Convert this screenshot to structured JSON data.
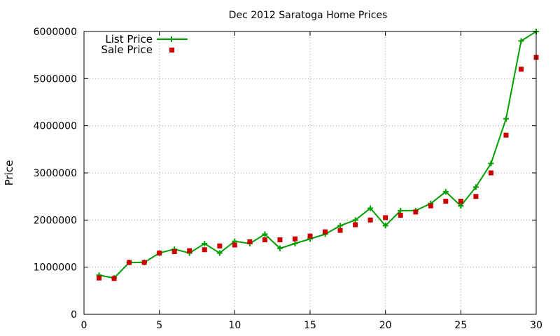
{
  "chart_data": {
    "type": "line",
    "title": "Dec 2012 Saratoga Home Prices",
    "xlabel": "",
    "ylabel": "Price",
    "xlim": [
      0,
      30
    ],
    "ylim": [
      0,
      6000000
    ],
    "x_ticks": [
      0,
      5,
      10,
      15,
      20,
      25,
      30
    ],
    "y_ticks": [
      0,
      1000000,
      2000000,
      3000000,
      4000000,
      5000000,
      6000000
    ],
    "grid": true,
    "legend_position": "top-left",
    "x": [
      1,
      2,
      3,
      4,
      5,
      6,
      7,
      8,
      9,
      10,
      11,
      12,
      13,
      14,
      15,
      16,
      17,
      18,
      19,
      20,
      21,
      22,
      23,
      24,
      25,
      26,
      27,
      28,
      29,
      30
    ],
    "series": [
      {
        "name": "List Price",
        "style": "linespoints",
        "marker": "plus",
        "color": "#00a000",
        "values": [
          830000,
          770000,
          1100000,
          1100000,
          1300000,
          1380000,
          1300000,
          1500000,
          1300000,
          1550000,
          1500000,
          1700000,
          1400000,
          1500000,
          1600000,
          1700000,
          1880000,
          2000000,
          2250000,
          1880000,
          2200000,
          2200000,
          2350000,
          2600000,
          2300000,
          2700000,
          3200000,
          4150000,
          5800000,
          6000000
        ]
      },
      {
        "name": "Sale Price",
        "style": "points",
        "marker": "square",
        "color": "#cc0000",
        "values": [
          770000,
          760000,
          1100000,
          1100000,
          1300000,
          1330000,
          1350000,
          1370000,
          1450000,
          1470000,
          1540000,
          1580000,
          1580000,
          1600000,
          1660000,
          1750000,
          1780000,
          1900000,
          2000000,
          2050000,
          2100000,
          2170000,
          2300000,
          2400000,
          2400000,
          2500000,
          3000000,
          3800000,
          5200000,
          5450000
        ]
      }
    ]
  }
}
